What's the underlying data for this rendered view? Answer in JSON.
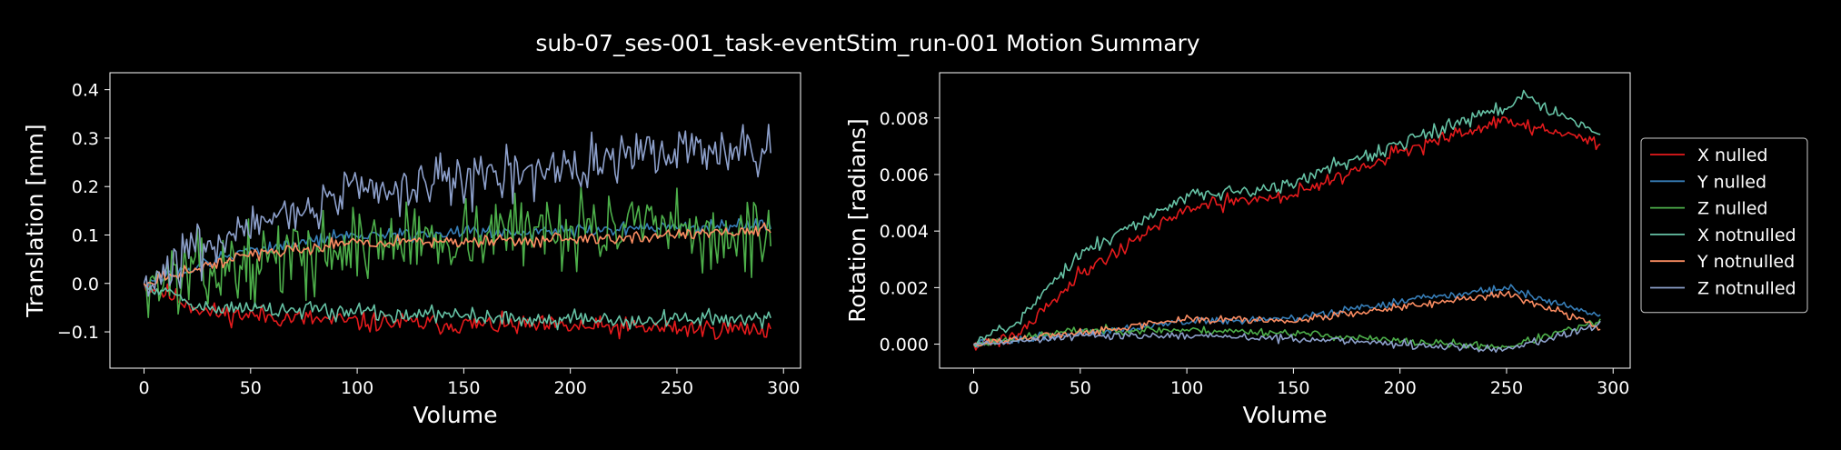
{
  "figure": {
    "title": "sub-07_ses-001_task-eventStim_run-001 Motion Summary",
    "background": "#000000",
    "foreground": "#ffffff"
  },
  "legend": {
    "placement": "right",
    "entries": [
      {
        "name": "X nulled",
        "color": "#e41a1c"
      },
      {
        "name": "Y nulled",
        "color": "#377eb8"
      },
      {
        "name": "Z nulled",
        "color": "#4daf4a"
      },
      {
        "name": "X notnulled",
        "color": "#66c2a5"
      },
      {
        "name": "Y notnulled",
        "color": "#fc8d62"
      },
      {
        "name": "Z notnulled",
        "color": "#8da0cb"
      }
    ]
  },
  "chart_data": [
    {
      "type": "line",
      "xlabel": "Volume",
      "ylabel": "Translation [mm]",
      "xlim": [
        -16,
        308
      ],
      "ylim": [
        -0.175,
        0.435
      ],
      "xticks": [
        0,
        50,
        100,
        150,
        200,
        250,
        300
      ],
      "yticks": [
        -0.1,
        0.0,
        0.1,
        0.2,
        0.3,
        0.4
      ],
      "ytick_labels": [
        "−0.1",
        "0.0",
        "0.1",
        "0.2",
        "0.3",
        "0.4"
      ],
      "grid": false,
      "n_volumes": 295,
      "series": [
        {
          "name": "X nulled",
          "color": "#e41a1c",
          "trend": {
            "x": [
              0,
              30,
              100,
              200,
              294
            ],
            "y": [
              0.0,
              -0.06,
              -0.08,
              -0.09,
              -0.095
            ]
          },
          "noise": 0.018,
          "seed": 11
        },
        {
          "name": "Y nulled",
          "color": "#377eb8",
          "trend": {
            "x": [
              0,
              50,
              100,
              200,
              294
            ],
            "y": [
              0.0,
              0.07,
              0.1,
              0.11,
              0.12
            ]
          },
          "noise": 0.012,
          "seed": 12
        },
        {
          "name": "Z nulled",
          "color": "#4daf4a",
          "trend": {
            "x": [
              0,
              50,
              100,
              200,
              294
            ],
            "y": [
              0.0,
              0.04,
              0.08,
              0.12,
              0.09
            ]
          },
          "noise": 0.065,
          "seed": 13
        },
        {
          "name": "X notnulled",
          "color": "#66c2a5",
          "trend": {
            "x": [
              0,
              30,
              100,
              200,
              294
            ],
            "y": [
              0.0,
              -0.05,
              -0.06,
              -0.075,
              -0.075
            ]
          },
          "noise": 0.015,
          "seed": 14
        },
        {
          "name": "Y notnulled",
          "color": "#fc8d62",
          "trend": {
            "x": [
              0,
              50,
              100,
              200,
              294
            ],
            "y": [
              0.0,
              0.06,
              0.085,
              0.09,
              0.11
            ]
          },
          "noise": 0.011,
          "seed": 15
        },
        {
          "name": "Z notnulled",
          "color": "#8da0cb",
          "trend": {
            "x": [
              0,
              50,
              100,
              200,
              250,
              294
            ],
            "y": [
              0.0,
              0.13,
              0.19,
              0.24,
              0.27,
              0.27
            ]
          },
          "noise": 0.045,
          "seed": 16
        }
      ]
    },
    {
      "type": "line",
      "xlabel": "Volume",
      "ylabel": "Rotation [radians]",
      "xlim": [
        -16,
        308
      ],
      "ylim": [
        -0.00085,
        0.0096
      ],
      "xticks": [
        0,
        50,
        100,
        150,
        200,
        250,
        300
      ],
      "yticks": [
        0.0,
        0.002,
        0.004,
        0.006,
        0.008
      ],
      "ytick_labels": [
        "0.000",
        "0.002",
        "0.004",
        "0.006",
        "0.008"
      ],
      "grid": false,
      "n_volumes": 295,
      "series": [
        {
          "name": "X nulled",
          "color": "#e41a1c",
          "trend": {
            "x": [
              0,
              20,
              50,
              100,
              150,
              200,
              250,
              294
            ],
            "y": [
              0.0,
              0.0003,
              0.0025,
              0.0048,
              0.0053,
              0.0068,
              0.0079,
              0.0071
            ]
          },
          "noise": 0.00022,
          "seed": 21
        },
        {
          "name": "Y nulled",
          "color": "#377eb8",
          "trend": {
            "x": [
              0,
              50,
              100,
              150,
              200,
              250,
              294
            ],
            "y": [
              0.0,
              0.0004,
              0.0008,
              0.0009,
              0.0015,
              0.002,
              0.001
            ]
          },
          "noise": 0.00012,
          "seed": 22
        },
        {
          "name": "Z nulled",
          "color": "#4daf4a",
          "trend": {
            "x": [
              0,
              50,
              100,
              150,
              200,
              250,
              294
            ],
            "y": [
              0.0,
              0.0005,
              0.0005,
              0.0004,
              0.0001,
              -0.0001,
              0.0008
            ]
          },
          "noise": 0.00012,
          "seed": 23
        },
        {
          "name": "X notnulled",
          "color": "#66c2a5",
          "trend": {
            "x": [
              0,
              20,
              50,
              100,
              150,
              200,
              260,
              294
            ],
            "y": [
              0.0,
              0.0008,
              0.0032,
              0.0052,
              0.0057,
              0.0071,
              0.0087,
              0.0074
            ]
          },
          "noise": 0.00022,
          "seed": 24
        },
        {
          "name": "Y notnulled",
          "color": "#fc8d62",
          "trend": {
            "x": [
              0,
              50,
              100,
              150,
              200,
              250,
              294
            ],
            "y": [
              0.0,
              0.0004,
              0.0009,
              0.0008,
              0.0013,
              0.0018,
              0.0006
            ]
          },
          "noise": 0.00012,
          "seed": 25
        },
        {
          "name": "Z notnulled",
          "color": "#8da0cb",
          "trend": {
            "x": [
              0,
              50,
              100,
              150,
              200,
              250,
              294
            ],
            "y": [
              0.0,
              0.0003,
              0.0003,
              0.0002,
              0.0,
              -0.0002,
              0.0007
            ]
          },
          "noise": 0.00012,
          "seed": 26
        }
      ]
    }
  ]
}
